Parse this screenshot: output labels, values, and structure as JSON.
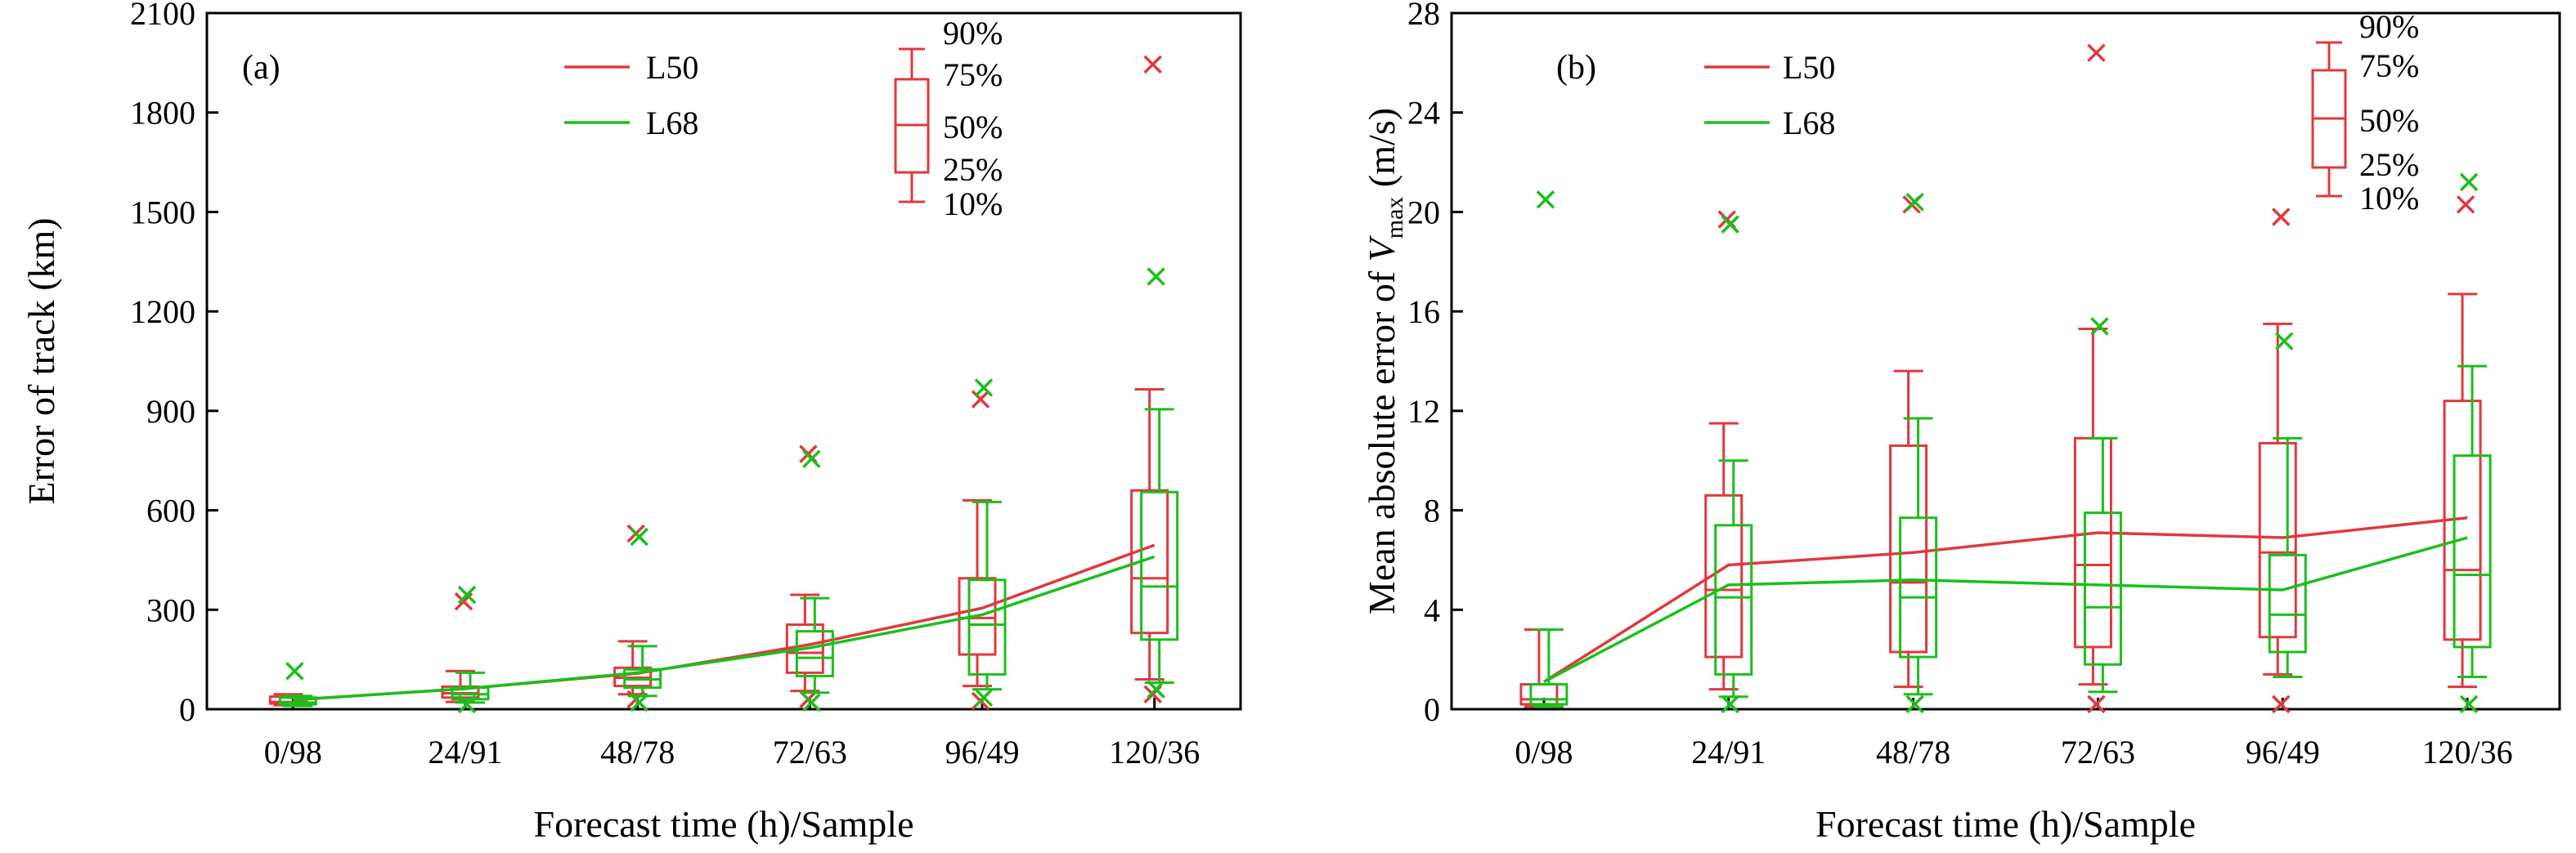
{
  "colors": {
    "L50": "#e0393e",
    "L68": "#1bbf1b",
    "axis": "#000000"
  },
  "chart_data": [
    {
      "type": "box",
      "panel_label": "(a)",
      "title": "",
      "xlabel": "Forecast time (h)/Sample",
      "ylabel": "Error of track (km)",
      "ylim": [
        0,
        2100
      ],
      "yticks": [
        "0",
        "300",
        "600",
        "900",
        "1200",
        "1500",
        "1800",
        "2100"
      ],
      "categories": [
        "0/98",
        "24/91",
        "48/78",
        "72/63",
        "96/49",
        "120/36"
      ],
      "legend": {
        "L50": "L50",
        "L68": "L68"
      },
      "box_legend": [
        "90%",
        "75%",
        "50%",
        "25%",
        "10%"
      ],
      "series": [
        {
          "name": "L50",
          "mean": [
            28,
            62,
            108,
            195,
            305,
            495
          ],
          "p10": [
            12,
            22,
            45,
            55,
            70,
            90
          ],
          "p25": [
            17,
            35,
            70,
            110,
            165,
            230
          ],
          "p50": [
            22,
            48,
            95,
            170,
            275,
            395
          ],
          "p75": [
            38,
            68,
            125,
            255,
            395,
            660
          ],
          "p90": [
            45,
            115,
            205,
            345,
            630,
            965
          ],
          "outlier_high": [
            null,
            325,
            530,
            770,
            935,
            1945
          ],
          "outlier_low": [
            null,
            null,
            30,
            30,
            25,
            45
          ]
        },
        {
          "name": "L68",
          "mean": [
            28,
            62,
            110,
            185,
            285,
            460
          ],
          "p10": [
            10,
            20,
            40,
            50,
            60,
            80
          ],
          "p25": [
            15,
            30,
            65,
            100,
            105,
            210
          ],
          "p50": [
            20,
            45,
            90,
            155,
            255,
            370
          ],
          "p75": [
            35,
            65,
            120,
            235,
            390,
            655
          ],
          "p90": [
            40,
            110,
            190,
            335,
            625,
            905
          ],
          "outlier_high": [
            115,
            345,
            520,
            755,
            970,
            1305
          ],
          "outlier_low": [
            null,
            15,
            20,
            20,
            35,
            60
          ]
        }
      ]
    },
    {
      "type": "box",
      "panel_label": "(b)",
      "title": "",
      "xlabel": "Forecast time (h)/Sample",
      "ylabel_parts": [
        "Mean absolute error of ",
        "V",
        "max",
        " (m/s)"
      ],
      "ylim": [
        0,
        28
      ],
      "yticks": [
        "0",
        "4",
        "8",
        "12",
        "16",
        "20",
        "24",
        "28"
      ],
      "categories": [
        "0/98",
        "24/91",
        "48/78",
        "72/63",
        "96/49",
        "120/36"
      ],
      "legend": {
        "L50": "L50",
        "L68": "L68"
      },
      "box_legend": [
        "90%",
        "75%",
        "50%",
        "25%",
        "10%"
      ],
      "series": [
        {
          "name": "L50",
          "mean": [
            1.1,
            5.8,
            6.3,
            7.1,
            6.9,
            7.7
          ],
          "p10": [
            0.1,
            0.8,
            0.9,
            1.0,
            1.4,
            0.9
          ],
          "p25": [
            0.2,
            2.1,
            2.3,
            2.5,
            2.9,
            2.8
          ],
          "p50": [
            0.4,
            4.8,
            5.1,
            5.8,
            6.3,
            5.6
          ],
          "p75": [
            1.0,
            8.6,
            10.6,
            10.9,
            10.7,
            12.4
          ],
          "p90": [
            3.2,
            11.5,
            13.6,
            15.3,
            15.5,
            16.7
          ],
          "outlier_high": [
            null,
            19.7,
            20.3,
            26.4,
            19.8,
            20.3
          ],
          "outlier_low": [
            null,
            null,
            null,
            0.2,
            0.2,
            null
          ]
        },
        {
          "name": "L68",
          "mean": [
            1.1,
            5.0,
            5.2,
            5.0,
            4.8,
            6.9
          ],
          "p10": [
            0.1,
            0.5,
            0.6,
            0.7,
            1.3,
            1.3
          ],
          "p25": [
            0.2,
            1.4,
            2.1,
            1.8,
            2.3,
            2.5
          ],
          "p50": [
            0.4,
            4.5,
            4.5,
            4.1,
            3.8,
            5.4
          ],
          "p75": [
            1.0,
            7.4,
            7.7,
            7.9,
            6.2,
            10.2
          ],
          "p90": [
            3.2,
            10.0,
            11.7,
            10.9,
            10.9,
            13.8
          ],
          "outlier_high": [
            20.5,
            19.5,
            20.4,
            15.4,
            14.8,
            21.2
          ],
          "outlier_low": [
            null,
            0.2,
            0.2,
            null,
            null,
            0.2
          ]
        }
      ]
    }
  ]
}
